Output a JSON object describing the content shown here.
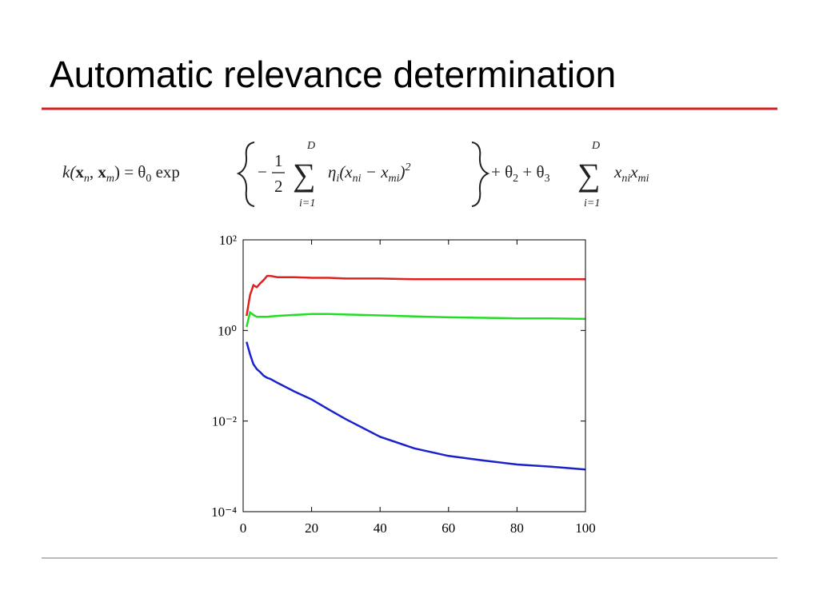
{
  "title": "Automatic relevance determination",
  "formula": [
    "k(",
    "x",
    "n",
    ", ",
    "x",
    "m",
    ") = θ",
    "0",
    " exp",
    "−",
    "1",
    "2",
    "D",
    "∑",
    "i=1",
    "η",
    "i",
    "(x",
    "ni",
    " − x",
    "mi",
    ")",
    "2",
    "+ θ",
    "2",
    " + θ",
    "3",
    "D",
    "∑",
    "i=1",
    "x",
    "ni",
    "x",
    "mi"
  ],
  "chart_data": {
    "type": "line",
    "log_y": true,
    "box": true,
    "x": [
      1,
      2,
      3,
      4,
      5,
      6,
      7,
      8,
      10,
      15,
      20,
      25,
      30,
      40,
      50,
      60,
      70,
      80,
      90,
      100
    ],
    "series": [
      {
        "color": "#dd2020",
        "values": [
          2.1,
          6,
          10,
          9,
          11,
          13,
          16,
          16,
          15,
          15,
          14.5,
          14.5,
          14,
          14,
          13.5,
          13.5,
          13.5,
          13.5,
          13.5,
          13.5
        ]
      },
      {
        "color": "#22dd22",
        "values": [
          1.2,
          2.5,
          2.2,
          2.0,
          2.0,
          2.0,
          2.0,
          2.05,
          2.1,
          2.2,
          2.3,
          2.3,
          2.25,
          2.15,
          2.05,
          1.95,
          1.9,
          1.85,
          1.85,
          1.8
        ]
      },
      {
        "color": "#1a22cc",
        "values": [
          0.56,
          0.3,
          0.18,
          0.14,
          0.12,
          0.1,
          0.09,
          0.085,
          0.07,
          0.045,
          0.03,
          0.018,
          0.011,
          0.0045,
          0.0025,
          0.0017,
          0.00135,
          0.0011,
          0.00098,
          0.00085
        ]
      }
    ],
    "xlim": [
      0,
      100
    ],
    "xticks": [
      0,
      20,
      40,
      60,
      80,
      100
    ],
    "ylim": [
      0.0001,
      100
    ],
    "yticks": [
      {
        "value": 0.0001,
        "label": "10⁻⁴"
      },
      {
        "value": 0.01,
        "label": "10⁻²"
      },
      {
        "value": 1,
        "label": "10⁰"
      },
      {
        "value": 100,
        "label": "10²"
      }
    ]
  }
}
